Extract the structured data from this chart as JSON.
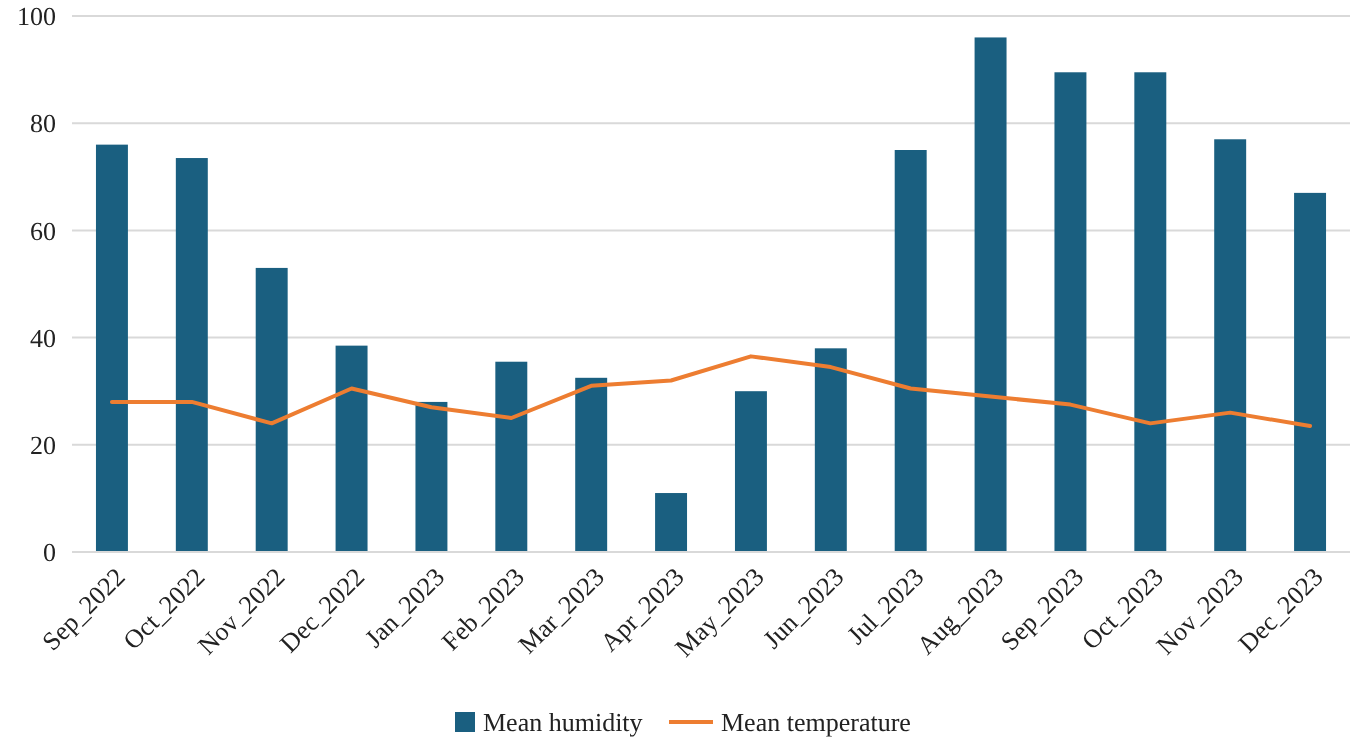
{
  "chart_data": {
    "type": "bar",
    "categories": [
      "Sep_2022",
      "Oct_2022",
      "Nov_2022",
      "Dec_2022",
      "Jan_2023",
      "Feb_2023",
      "Mar_2023",
      "Apr_2023",
      "May_2023",
      "Jun_2023",
      "Jul_2023",
      "Aug_2023",
      "Sep_2023",
      "Oct_2023",
      "Nov_2023",
      "Dec_2023"
    ],
    "series": [
      {
        "name": "Mean humidity",
        "color": "#1a5f80",
        "values": [
          76,
          73.5,
          53,
          38.5,
          28,
          35.5,
          32.5,
          11,
          30,
          38,
          75,
          96,
          89.5,
          89.5,
          77,
          67
        ]
      },
      {
        "name": "Mean temperature",
        "type": "line",
        "color": "#ed7d31",
        "values": [
          28,
          28,
          24,
          30.5,
          27,
          25,
          31,
          32,
          36.5,
          34.5,
          30.5,
          29,
          27.5,
          24,
          26,
          23.5
        ]
      }
    ],
    "ylim": [
      0,
      100
    ],
    "yticks": [
      0,
      20,
      40,
      60,
      80,
      100
    ],
    "grid": "y",
    "legend": "bottom"
  }
}
